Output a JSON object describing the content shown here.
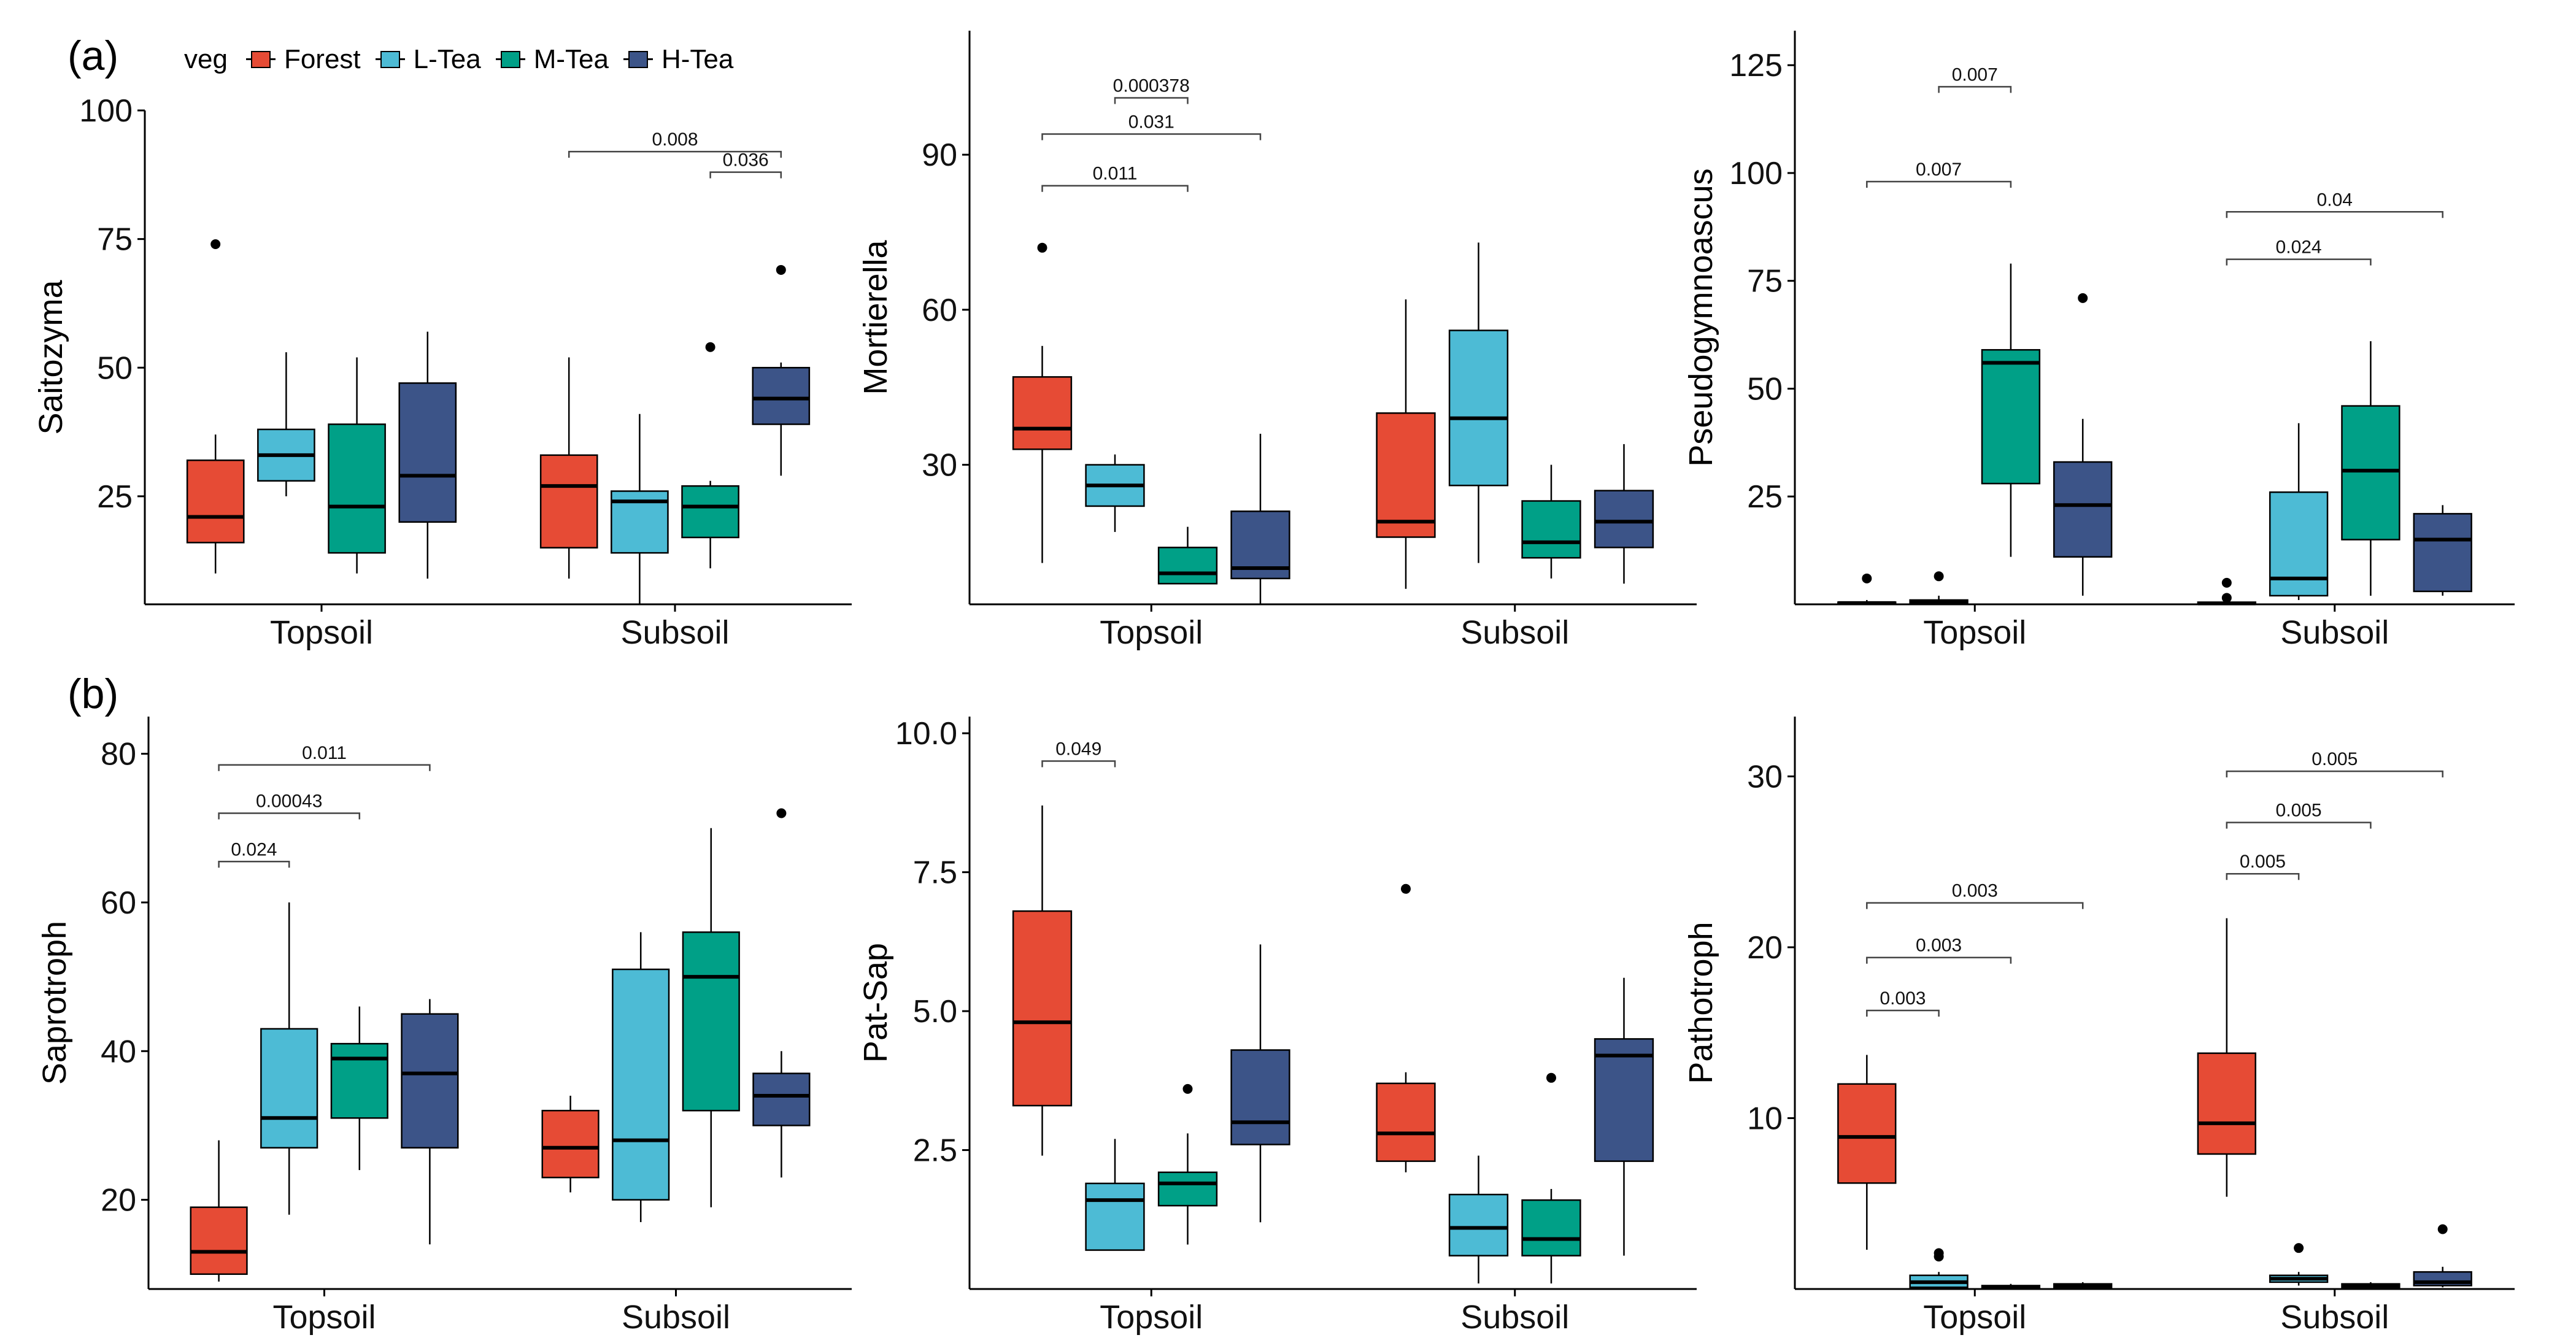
{
  "panel_labels": {
    "a": "(a)",
    "b": "(b)"
  },
  "legend": {
    "title": "veg",
    "items": [
      {
        "label": "Forest",
        "color": "#E64B35"
      },
      {
        "label": "L-Tea",
        "color": "#4DBBD5"
      },
      {
        "label": "M-Tea",
        "color": "#00A087"
      },
      {
        "label": "H-Tea",
        "color": "#3C5488"
      }
    ]
  },
  "chart_data": [
    {
      "type": "box",
      "ylabel": "Saitozyma",
      "categories": [
        "Topsoil",
        "Subsoil"
      ],
      "ylim": [
        4,
        100
      ],
      "yticks": [
        25,
        50,
        75,
        100
      ],
      "yticklabels": [
        "25",
        "50",
        "75",
        "100"
      ],
      "groups": [
        [
          {
            "series": "Forest",
            "whislo": 10,
            "q1": 16,
            "med": 21,
            "q3": 32,
            "whishi": 37,
            "fliers": [
              74
            ]
          },
          {
            "series": "L-Tea",
            "whislo": 25,
            "q1": 28,
            "med": 33,
            "q3": 38,
            "whishi": 53,
            "fliers": []
          },
          {
            "series": "M-Tea",
            "whislo": 10,
            "q1": 14,
            "med": 23,
            "q3": 39,
            "whishi": 52,
            "fliers": []
          },
          {
            "series": "H-Tea",
            "whislo": 9,
            "q1": 20,
            "med": 29,
            "q3": 47,
            "whishi": 57,
            "fliers": []
          }
        ],
        [
          {
            "series": "Forest",
            "whislo": 9,
            "q1": 15,
            "med": 27,
            "q3": 33,
            "whishi": 52,
            "fliers": []
          },
          {
            "series": "L-Tea",
            "whislo": 4,
            "q1": 14,
            "med": 24,
            "q3": 26,
            "whishi": 41,
            "fliers": []
          },
          {
            "series": "M-Tea",
            "whislo": 11,
            "q1": 17,
            "med": 23,
            "q3": 27,
            "whishi": 28,
            "fliers": [
              54
            ]
          },
          {
            "series": "H-Tea",
            "whislo": 29,
            "q1": 39,
            "med": 44,
            "q3": 50,
            "whishi": 51,
            "fliers": [
              69
            ]
          }
        ]
      ],
      "significance": [
        {
          "cat": 1,
          "from": 0,
          "to": 3,
          "y": 92,
          "label": "0.008"
        },
        {
          "cat": 1,
          "from": 2,
          "to": 3,
          "y": 88,
          "label": "0.036"
        }
      ]
    },
    {
      "type": "box",
      "ylabel": "Mortierella",
      "categories": [
        "Topsoil",
        "Subsoil"
      ],
      "ylim": [
        3,
        114
      ],
      "yticks": [
        30,
        60,
        90
      ],
      "yticklabels": [
        "30",
        "60",
        "90"
      ],
      "groups": [
        [
          {
            "series": "Forest",
            "whislo": 11,
            "q1": 33,
            "med": 37,
            "q3": 47,
            "whishi": 53,
            "fliers": [
              72
            ]
          },
          {
            "series": "L-Tea",
            "whislo": 17,
            "q1": 22,
            "med": 26,
            "q3": 30,
            "whishi": 32,
            "fliers": []
          },
          {
            "series": "M-Tea",
            "whislo": 7,
            "q1": 7,
            "med": 9,
            "q3": 14,
            "whishi": 18,
            "fliers": []
          },
          {
            "series": "H-Tea",
            "whislo": 3,
            "q1": 8,
            "med": 10,
            "q3": 21,
            "whishi": 36,
            "fliers": []
          }
        ],
        [
          {
            "series": "Forest",
            "whislo": 6,
            "q1": 16,
            "med": 19,
            "q3": 40,
            "whishi": 62,
            "fliers": []
          },
          {
            "series": "L-Tea",
            "whislo": 11,
            "q1": 26,
            "med": 39,
            "q3": 56,
            "whishi": 73,
            "fliers": []
          },
          {
            "series": "M-Tea",
            "whislo": 8,
            "q1": 12,
            "med": 15,
            "q3": 23,
            "whishi": 30,
            "fliers": []
          },
          {
            "series": "H-Tea",
            "whislo": 7,
            "q1": 14,
            "med": 19,
            "q3": 25,
            "whishi": 34,
            "fliers": []
          }
        ]
      ],
      "significance": [
        {
          "cat": 0,
          "from": 0,
          "to": 2,
          "y": 84,
          "label": "0.011"
        },
        {
          "cat": 0,
          "from": 0,
          "to": 3,
          "y": 94,
          "label": "0.031"
        },
        {
          "cat": 0,
          "from": 1,
          "to": 2,
          "y": 101,
          "label": "0.000378"
        }
      ]
    },
    {
      "type": "box",
      "ylabel": "Pseudogymnoascus",
      "categories": [
        "Topsoil",
        "Subsoil"
      ],
      "ylim": [
        0,
        133
      ],
      "yticks": [
        25,
        50,
        75,
        100,
        125
      ],
      "yticklabels": [
        "25",
        "50",
        "75",
        "100",
        "125"
      ],
      "groups": [
        [
          {
            "series": "Forest",
            "whislo": 0,
            "q1": 0,
            "med": 0.3,
            "q3": 0.5,
            "whishi": 1,
            "fliers": [
              6
            ]
          },
          {
            "series": "L-Tea",
            "whislo": 0,
            "q1": 0,
            "med": 0.5,
            "q3": 1,
            "whishi": 2,
            "fliers": [
              6.5
            ]
          },
          {
            "series": "M-Tea",
            "whislo": 11,
            "q1": 28,
            "med": 56,
            "q3": 59,
            "whishi": 79,
            "fliers": []
          },
          {
            "series": "H-Tea",
            "whislo": 2,
            "q1": 11,
            "med": 23,
            "q3": 33,
            "whishi": 43,
            "fliers": [
              71
            ]
          }
        ],
        [
          {
            "series": "Forest",
            "whislo": 0,
            "q1": 0,
            "med": 0.2,
            "q3": 0.5,
            "whishi": 1,
            "fliers": [
              5,
              1.5
            ]
          },
          {
            "series": "L-Tea",
            "whislo": 1,
            "q1": 2,
            "med": 6,
            "q3": 26,
            "whishi": 42,
            "fliers": []
          },
          {
            "series": "M-Tea",
            "whislo": 2,
            "q1": 15,
            "med": 31,
            "q3": 46,
            "whishi": 61,
            "fliers": []
          },
          {
            "series": "H-Tea",
            "whislo": 2,
            "q1": 3,
            "med": 15,
            "q3": 21,
            "whishi": 23,
            "fliers": []
          }
        ]
      ],
      "significance": [
        {
          "cat": 0,
          "from": 0,
          "to": 2,
          "y": 98,
          "label": "0.007"
        },
        {
          "cat": 0,
          "from": 1,
          "to": 2,
          "y": 120,
          "label": "0.007"
        },
        {
          "cat": 1,
          "from": 0,
          "to": 2,
          "y": 80,
          "label": "0.024"
        },
        {
          "cat": 1,
          "from": 0,
          "to": 3,
          "y": 91,
          "label": "0.04"
        }
      ]
    },
    {
      "type": "box",
      "ylabel": "Saprotroph",
      "categories": [
        "Topsoil",
        "Subsoil"
      ],
      "ylim": [
        8,
        85
      ],
      "yticks": [
        20,
        40,
        60,
        80
      ],
      "yticklabels": [
        "20",
        "40",
        "60",
        "80"
      ],
      "groups": [
        [
          {
            "series": "Forest",
            "whislo": 9,
            "q1": 10,
            "med": 13,
            "q3": 19,
            "whishi": 28,
            "fliers": []
          },
          {
            "series": "L-Tea",
            "whislo": 18,
            "q1": 27,
            "med": 31,
            "q3": 43,
            "whishi": 60,
            "fliers": []
          },
          {
            "series": "M-Tea",
            "whislo": 24,
            "q1": 31,
            "med": 39,
            "q3": 41,
            "whishi": 46,
            "fliers": []
          },
          {
            "series": "H-Tea",
            "whislo": 14,
            "q1": 27,
            "med": 37,
            "q3": 45,
            "whishi": 47,
            "fliers": []
          }
        ],
        [
          {
            "series": "Forest",
            "whislo": 21,
            "q1": 23,
            "med": 27,
            "q3": 32,
            "whishi": 34,
            "fliers": []
          },
          {
            "series": "L-Tea",
            "whislo": 17,
            "q1": 20,
            "med": 28,
            "q3": 51,
            "whishi": 56,
            "fliers": []
          },
          {
            "series": "M-Tea",
            "whislo": 19,
            "q1": 32,
            "med": 50,
            "q3": 56,
            "whishi": 70,
            "fliers": []
          },
          {
            "series": "H-Tea",
            "whislo": 23,
            "q1": 30,
            "med": 34,
            "q3": 37,
            "whishi": 40,
            "fliers": [
              72
            ]
          }
        ]
      ],
      "significance": [
        {
          "cat": 0,
          "from": 0,
          "to": 1,
          "y": 65.5,
          "label": "0.024"
        },
        {
          "cat": 0,
          "from": 0,
          "to": 2,
          "y": 72,
          "label": "0.00043"
        },
        {
          "cat": 0,
          "from": 0,
          "to": 3,
          "y": 78.5,
          "label": "0.011"
        }
      ]
    },
    {
      "type": "box",
      "ylabel": "Pat-Sap",
      "categories": [
        "Topsoil",
        "Subsoil"
      ],
      "ylim": [
        0,
        10.3
      ],
      "yticks": [
        2.5,
        5.0,
        7.5,
        10.0
      ],
      "yticklabels": [
        "2.5",
        "5.0",
        "7.5",
        "10.0"
      ],
      "groups": [
        [
          {
            "series": "Forest",
            "whislo": 2.4,
            "q1": 3.3,
            "med": 4.8,
            "q3": 6.8,
            "whishi": 8.7,
            "fliers": []
          },
          {
            "series": "L-Tea",
            "whislo": 0.7,
            "q1": 0.7,
            "med": 1.6,
            "q3": 1.9,
            "whishi": 2.7,
            "fliers": []
          },
          {
            "series": "M-Tea",
            "whislo": 0.8,
            "q1": 1.5,
            "med": 1.9,
            "q3": 2.1,
            "whishi": 2.8,
            "fliers": [
              3.6
            ]
          },
          {
            "series": "H-Tea",
            "whislo": 1.2,
            "q1": 2.6,
            "med": 3.0,
            "q3": 4.3,
            "whishi": 6.2,
            "fliers": []
          }
        ],
        [
          {
            "series": "Forest",
            "whislo": 2.1,
            "q1": 2.3,
            "med": 2.8,
            "q3": 3.7,
            "whishi": 3.9,
            "fliers": [
              7.2
            ]
          },
          {
            "series": "L-Tea",
            "whislo": 0.1,
            "q1": 0.6,
            "med": 1.1,
            "q3": 1.7,
            "whishi": 2.4,
            "fliers": []
          },
          {
            "series": "M-Tea",
            "whislo": 0.1,
            "q1": 0.6,
            "med": 0.9,
            "q3": 1.6,
            "whishi": 1.8,
            "fliers": [
              3.8
            ]
          },
          {
            "series": "H-Tea",
            "whislo": 0.6,
            "q1": 2.3,
            "med": 4.2,
            "q3": 4.5,
            "whishi": 5.6,
            "fliers": []
          }
        ]
      ],
      "significance": [
        {
          "cat": 0,
          "from": 0,
          "to": 1,
          "y": 9.5,
          "label": "0.049"
        }
      ]
    },
    {
      "type": "box",
      "ylabel": "Pathotroph",
      "categories": [
        "Topsoil",
        "Subsoil"
      ],
      "ylim": [
        0,
        33.5
      ],
      "yticks": [
        10,
        20,
        30
      ],
      "yticklabels": [
        "10",
        "20",
        "30"
      ],
      "groups": [
        [
          {
            "series": "Forest",
            "whislo": 2.3,
            "q1": 6.2,
            "med": 8.9,
            "q3": 12.0,
            "whishi": 13.7,
            "fliers": []
          },
          {
            "series": "L-Tea",
            "whislo": 0,
            "q1": 0.1,
            "med": 0.4,
            "q3": 0.8,
            "whishi": 1.0,
            "fliers": [
              2.1,
              1.9
            ]
          },
          {
            "series": "M-Tea",
            "whislo": 0,
            "q1": 0,
            "med": 0.1,
            "q3": 0.2,
            "whishi": 0.3,
            "fliers": []
          },
          {
            "series": "H-Tea",
            "whislo": 0,
            "q1": 0.1,
            "med": 0.2,
            "q3": 0.3,
            "whishi": 0.4,
            "fliers": []
          }
        ],
        [
          {
            "series": "Forest",
            "whislo": 5.4,
            "q1": 7.9,
            "med": 9.7,
            "q3": 13.8,
            "whishi": 21.7,
            "fliers": []
          },
          {
            "series": "L-Tea",
            "whislo": 0.2,
            "q1": 0.4,
            "med": 0.6,
            "q3": 0.8,
            "whishi": 1.0,
            "fliers": [
              2.4
            ]
          },
          {
            "series": "M-Tea",
            "whislo": 0,
            "q1": 0.1,
            "med": 0.2,
            "q3": 0.3,
            "whishi": 0.4,
            "fliers": []
          },
          {
            "series": "H-Tea",
            "whislo": 0.1,
            "q1": 0.2,
            "med": 0.4,
            "q3": 1.0,
            "whishi": 1.3,
            "fliers": [
              3.5
            ]
          }
        ]
      ],
      "significance": [
        {
          "cat": 0,
          "from": 0,
          "to": 1,
          "y": 16.3,
          "label": "0.003"
        },
        {
          "cat": 0,
          "from": 0,
          "to": 2,
          "y": 19.4,
          "label": "0.003"
        },
        {
          "cat": 0,
          "from": 0,
          "to": 3,
          "y": 22.6,
          "label": "0.003"
        },
        {
          "cat": 1,
          "from": 0,
          "to": 1,
          "y": 24.3,
          "label": "0.005"
        },
        {
          "cat": 1,
          "from": 0,
          "to": 2,
          "y": 27.3,
          "label": "0.005"
        },
        {
          "cat": 1,
          "from": 0,
          "to": 3,
          "y": 30.3,
          "label": "0.005"
        }
      ]
    }
  ]
}
